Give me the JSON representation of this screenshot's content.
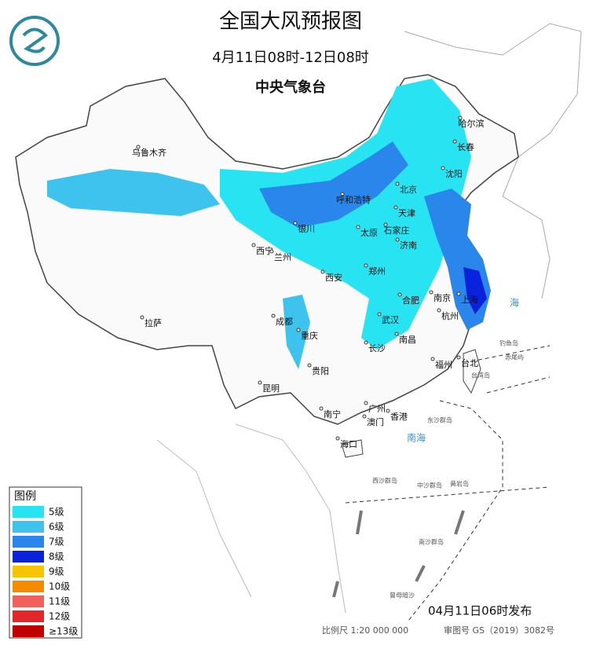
{
  "header": {
    "title": "全国大风预报图",
    "subtitle": "4月11日08时-12日08时",
    "agency": "中央气象台"
  },
  "legend": {
    "title": "图例",
    "items": [
      {
        "label": "5级",
        "color": "#28e4f2"
      },
      {
        "label": "6级",
        "color": "#3ec3ee"
      },
      {
        "label": "7级",
        "color": "#2a86ea"
      },
      {
        "label": "8级",
        "color": "#0a22dc"
      },
      {
        "label": "9级",
        "color": "#f6c400"
      },
      {
        "label": "10级",
        "color": "#f58c00"
      },
      {
        "label": "11级",
        "color": "#f2605e"
      },
      {
        "label": "12级",
        "color": "#e4262b"
      },
      {
        "label": "≥13级",
        "color": "#c10000"
      }
    ]
  },
  "cities": [
    "乌鲁木齐",
    "哈尔滨",
    "长春",
    "沈阳",
    "北京",
    "天津",
    "呼和浩特",
    "石家庄",
    "太原",
    "银川",
    "济南",
    "西宁",
    "兰州",
    "郑州",
    "西安",
    "合肥",
    "南京",
    "上海",
    "武汉",
    "杭州",
    "成都",
    "重庆",
    "拉萨",
    "长沙",
    "南昌",
    "贵阳",
    "福州",
    "台北",
    "昆明",
    "南宁",
    "广州",
    "香港",
    "澳门",
    "海口"
  ],
  "places": [
    "海",
    "南海",
    "钓鱼岛",
    "赤尾屿",
    "台湾岛",
    "东沙群岛",
    "西沙群岛",
    "中沙群岛",
    "黄岩岛",
    "南沙群岛",
    "曾母暗沙"
  ],
  "footer": {
    "issued": "04月11日06时发布",
    "scale": "比例尺 1:20 000 000",
    "review": "审图号 GS（2019）3082号"
  }
}
